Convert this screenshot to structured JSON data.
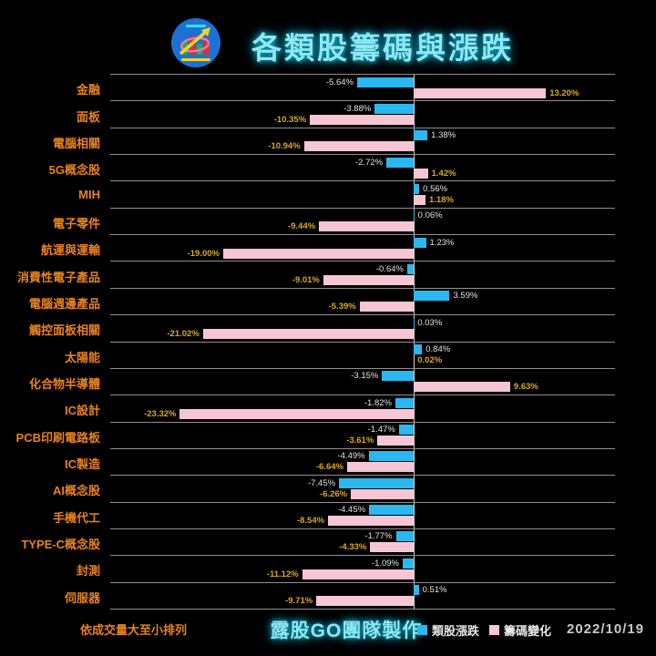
{
  "header": {
    "title": "各類股籌碼與漲跌"
  },
  "footer": {
    "sort_note": "依成交量大至小排列",
    "credit": "露股GO團隊製作",
    "date": "2022/10/19",
    "legend": [
      {
        "label": "類股漲跌",
        "color": "#29B8F0"
      },
      {
        "label": "籌碼變化",
        "color": "#F6C6D4"
      }
    ]
  },
  "colors": {
    "background": "#000000",
    "category_label": "#E8831D",
    "sector_bar": "#29B8F0",
    "chip_bar": "#F6C6D4",
    "sector_value_label": "#E3E3E3",
    "chip_value_label": "#DCA81C",
    "grid_line": "#8f8f8f",
    "zero_axis": "#cfcfcf",
    "title_glow": "#8BE9F5"
  },
  "chart_data": {
    "type": "bar",
    "orientation": "horizontal",
    "title": "各類股籌碼與漲跌",
    "value_suffix": "%",
    "xlim": [
      -30.3,
      20.1
    ],
    "grid": "row-separators",
    "legend_position": "bottom-right",
    "categories": [
      "金融",
      "面板",
      "電腦相關",
      "5G概念股",
      "MIH",
      "電子零件",
      "航運與運輸",
      "消費性電子產品",
      "電腦週邊產品",
      "觸控面板相關",
      "太陽能",
      "化合物半導體",
      "IC設計",
      "PCB印刷電路板",
      "IC製造",
      "AI概念股",
      "手機代工",
      "TYPE-C概念股",
      "封測",
      "伺服器"
    ],
    "series": [
      {
        "name": "類股漲跌",
        "color": "#29B8F0",
        "values": [
          -5.64,
          -3.88,
          1.38,
          -2.72,
          0.56,
          0.06,
          1.23,
          -0.64,
          3.59,
          0.03,
          0.84,
          -3.15,
          -1.82,
          -1.47,
          -4.49,
          -7.45,
          -4.45,
          -1.77,
          -1.09,
          0.51
        ]
      },
      {
        "name": "籌碼變化",
        "color": "#F6C6D4",
        "values": [
          13.2,
          -10.35,
          -10.94,
          1.42,
          1.18,
          -9.44,
          -19.0,
          -9.01,
          -5.39,
          -21.02,
          0.02,
          9.63,
          -23.32,
          -3.61,
          -6.64,
          -6.26,
          -8.54,
          -4.33,
          -11.12,
          -9.71
        ]
      }
    ]
  }
}
